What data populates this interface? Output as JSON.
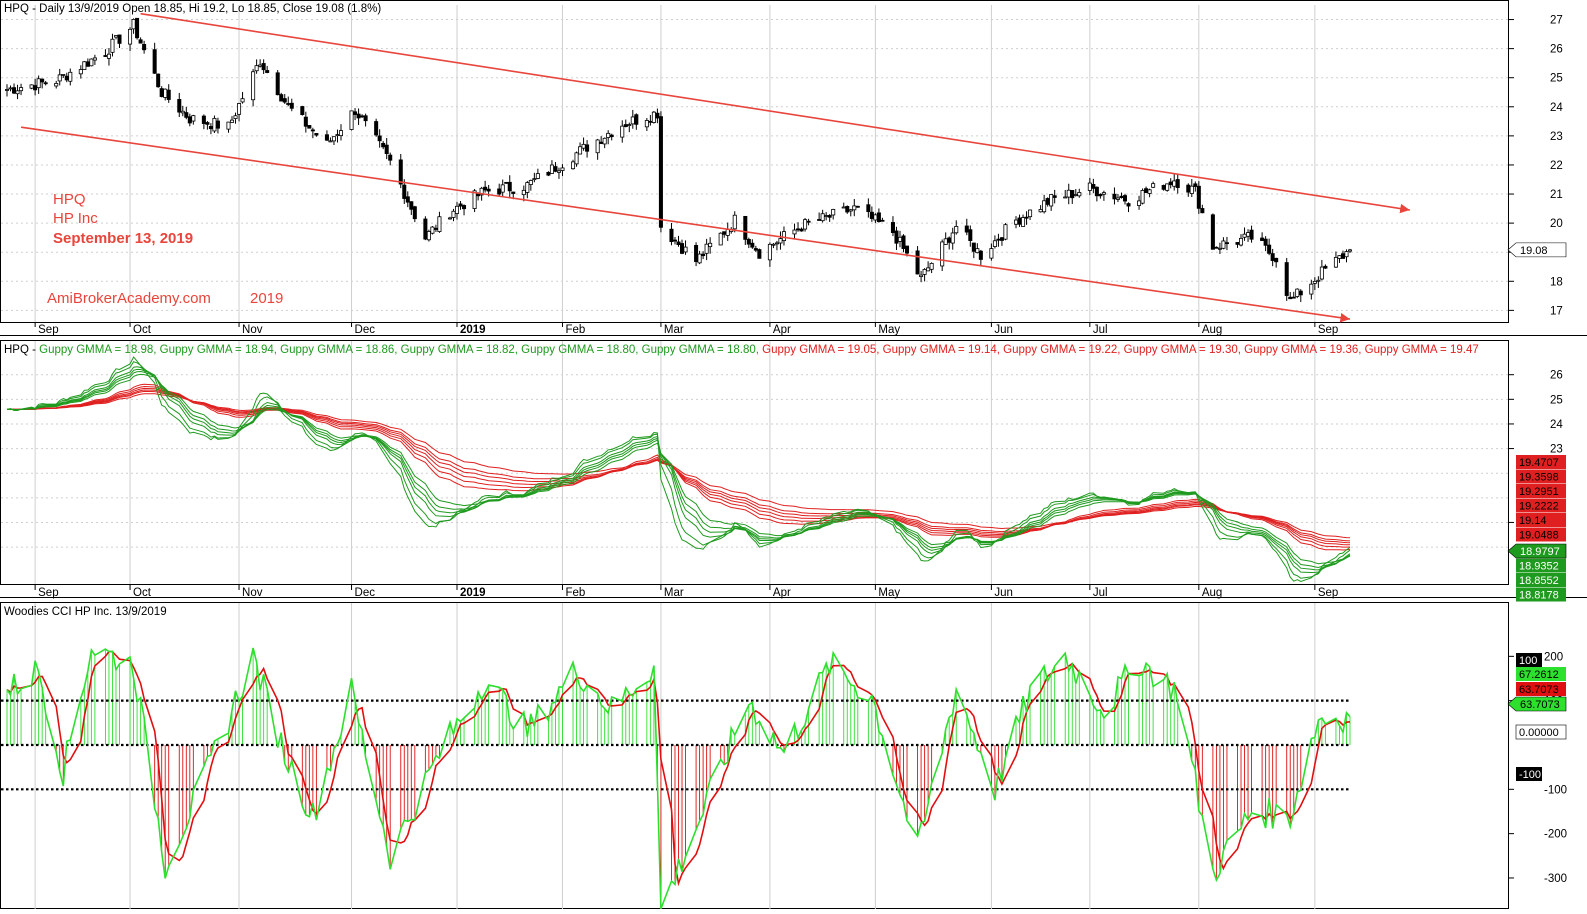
{
  "colors": {
    "up_candle": "#ffffff",
    "down_candle": "#000000",
    "trend": "#e8453c",
    "gmma_short": "#1e9a1e",
    "gmma_long": "#e02020",
    "cci_main": "#2ee02e",
    "cci_turbo": "#e01010",
    "grid": "#cfcfcf",
    "annotation": "#e8453c"
  },
  "panel1": {
    "header": "HPQ - Daily 13/9/2019 Open 18.85, Hi 19.2, Lo 18.85, Close 19.08 (1.8%)",
    "notes": [
      "HPQ",
      "HP Inc",
      "September 13, 2019"
    ],
    "site": "AmiBrokerAcademy.com",
    "site_year": "2019",
    "last_price": "19.08",
    "y_ticks": [
      "17",
      "18",
      "19",
      "20",
      "21",
      "22",
      "23",
      "24",
      "25",
      "26",
      "27"
    ]
  },
  "months": [
    "Sep",
    "Oct",
    "Nov",
    "Dec",
    "2019",
    "Feb",
    "Mar",
    "Apr",
    "May",
    "Jun",
    "Jul",
    "Aug",
    "Sep"
  ],
  "panel2": {
    "header_name": "HPQ - ",
    "gmma_label": "Guppy GMMA",
    "short_values": [
      "18.98",
      "18.94",
      "18.86",
      "18.82",
      "18.80",
      "18.80"
    ],
    "long_values": [
      "19.05",
      "19.14",
      "19.22",
      "19.30",
      "19.36",
      "19.47"
    ],
    "y_ticks": [
      "20",
      "23",
      "24",
      "25",
      "26"
    ],
    "badges_long": [
      "19.4707",
      "19.3598",
      "19.2951",
      "19.2222",
      "19.14",
      "19.0488"
    ],
    "badges_short": [
      "18.9797",
      "18.9352",
      "18.8552",
      "18.8178"
    ]
  },
  "panel3": {
    "header": "Woodies CCI  HP Inc. 13/9/2019",
    "y_ticks": [
      "200",
      "100",
      "-100",
      "-200",
      "-300"
    ],
    "badges": [
      {
        "text": "100",
        "bg": "#000000",
        "fg": "#ffffff"
      },
      {
        "text": "67.2612",
        "bg": "#2ee02e",
        "fg": "#000000"
      },
      {
        "text": "63.7073",
        "bg": "#e01010",
        "fg": "#000000"
      },
      {
        "text": "63.7073",
        "bg": "#2ee02e",
        "fg": "#000000"
      },
      {
        "text": "0.00000",
        "bg": "#ffffff",
        "fg": "#000000"
      },
      {
        "text": "-100",
        "bg": "#000000",
        "fg": "#ffffff"
      }
    ]
  },
  "chart_data": {
    "type": "line",
    "title": "HPQ - Daily 13/9/2019",
    "ohlc_last": {
      "open": 18.85,
      "high": 19.2,
      "low": 18.85,
      "close": 19.08,
      "change_pct": 1.8
    },
    "price_ylim": [
      16.6,
      27.5
    ],
    "price_anchors": [
      {
        "date": "2018-08-27",
        "close": 24.6
      },
      {
        "date": "2018-09-10",
        "close": 24.9
      },
      {
        "date": "2018-09-24",
        "close": 25.9
      },
      {
        "date": "2018-10-02",
        "close": 26.8
      },
      {
        "date": "2018-10-10",
        "close": 24.5
      },
      {
        "date": "2018-10-18",
        "close": 23.6
      },
      {
        "date": "2018-10-29",
        "close": 23.3
      },
      {
        "date": "2018-11-07",
        "close": 25.6
      },
      {
        "date": "2018-11-15",
        "close": 24.0
      },
      {
        "date": "2018-11-26",
        "close": 22.7
      },
      {
        "date": "2018-12-04",
        "close": 23.9
      },
      {
        "date": "2018-12-14",
        "close": 22.1
      },
      {
        "date": "2018-12-24",
        "close": 19.5
      },
      {
        "date": "2018-12-31",
        "close": 20.4
      },
      {
        "date": "2019-01-10",
        "close": 21.1
      },
      {
        "date": "2019-01-22",
        "close": 21.3
      },
      {
        "date": "2019-02-05",
        "close": 22.4
      },
      {
        "date": "2019-02-18",
        "close": 23.4
      },
      {
        "date": "2019-02-28",
        "close": 23.8
      },
      {
        "date": "2019-03-01",
        "close": 19.9
      },
      {
        "date": "2019-03-11",
        "close": 18.7
      },
      {
        "date": "2019-03-22",
        "close": 20.1
      },
      {
        "date": "2019-03-29",
        "close": 19.0
      },
      {
        "date": "2019-04-10",
        "close": 19.9
      },
      {
        "date": "2019-04-25",
        "close": 20.5
      },
      {
        "date": "2019-05-06",
        "close": 19.7
      },
      {
        "date": "2019-05-14",
        "close": 18.1
      },
      {
        "date": "2019-05-24",
        "close": 19.9
      },
      {
        "date": "2019-05-31",
        "close": 18.9
      },
      {
        "date": "2019-06-10",
        "close": 20.1
      },
      {
        "date": "2019-06-20",
        "close": 20.8
      },
      {
        "date": "2019-07-01",
        "close": 21.2
      },
      {
        "date": "2019-07-12",
        "close": 20.8
      },
      {
        "date": "2019-07-25",
        "close": 21.5
      },
      {
        "date": "2019-07-31",
        "close": 21.1
      },
      {
        "date": "2019-08-05",
        "close": 19.2
      },
      {
        "date": "2019-08-16",
        "close": 19.5
      },
      {
        "date": "2019-08-23",
        "close": 18.8
      },
      {
        "date": "2019-08-27",
        "close": 17.3
      },
      {
        "date": "2019-09-05",
        "close": 18.3
      },
      {
        "date": "2019-09-13",
        "close": 19.08
      }
    ],
    "trendlines": [
      {
        "from": {
          "date": "2018-10-04",
          "price": 27.2
        },
        "to": {
          "date": "2019-09-30",
          "price": 20.45
        }
      },
      {
        "from": {
          "date": "2018-08-31",
          "price": 23.3
        },
        "to": {
          "date": "2019-09-13",
          "price": 16.7
        }
      }
    ],
    "gmma_ylim": [
      17.5,
      26.8
    ],
    "cci_ylim": [
      -370,
      300
    ],
    "cci_levels": [
      100,
      0,
      -100
    ],
    "cci_anchors": [
      {
        "date": "2018-08-27",
        "v": 120
      },
      {
        "date": "2018-09-05",
        "v": 170
      },
      {
        "date": "2018-09-12",
        "v": -60
      },
      {
        "date": "2018-09-20",
        "v": 220
      },
      {
        "date": "2018-10-02",
        "v": 180
      },
      {
        "date": "2018-10-11",
        "v": -270
      },
      {
        "date": "2018-10-22",
        "v": -80
      },
      {
        "date": "2018-11-05",
        "v": 200
      },
      {
        "date": "2018-11-14",
        "v": -20
      },
      {
        "date": "2018-11-22",
        "v": -160
      },
      {
        "date": "2018-12-03",
        "v": 120
      },
      {
        "date": "2018-12-14",
        "v": -250
      },
      {
        "date": "2018-12-28",
        "v": -20
      },
      {
        "date": "2019-01-10",
        "v": 150
      },
      {
        "date": "2019-01-22",
        "v": 30
      },
      {
        "date": "2019-02-05",
        "v": 170
      },
      {
        "date": "2019-02-15",
        "v": 80
      },
      {
        "date": "2019-02-27",
        "v": 180
      },
      {
        "date": "2019-03-01",
        "v": -370
      },
      {
        "date": "2019-03-13",
        "v": -150
      },
      {
        "date": "2019-03-26",
        "v": 100
      },
      {
        "date": "2019-04-05",
        "v": -20
      },
      {
        "date": "2019-04-18",
        "v": 180
      },
      {
        "date": "2019-04-30",
        "v": 110
      },
      {
        "date": "2019-05-13",
        "v": -240
      },
      {
        "date": "2019-05-24",
        "v": 130
      },
      {
        "date": "2019-06-04",
        "v": -100
      },
      {
        "date": "2019-06-14",
        "v": 120
      },
      {
        "date": "2019-06-24",
        "v": 200
      },
      {
        "date": "2019-07-05",
        "v": 80
      },
      {
        "date": "2019-07-15",
        "v": 190
      },
      {
        "date": "2019-07-26",
        "v": 120
      },
      {
        "date": "2019-08-05",
        "v": -290
      },
      {
        "date": "2019-08-16",
        "v": -150
      },
      {
        "date": "2019-08-27",
        "v": -160
      },
      {
        "date": "2019-09-04",
        "v": 60
      },
      {
        "date": "2019-09-13",
        "v": 64
      }
    ]
  }
}
